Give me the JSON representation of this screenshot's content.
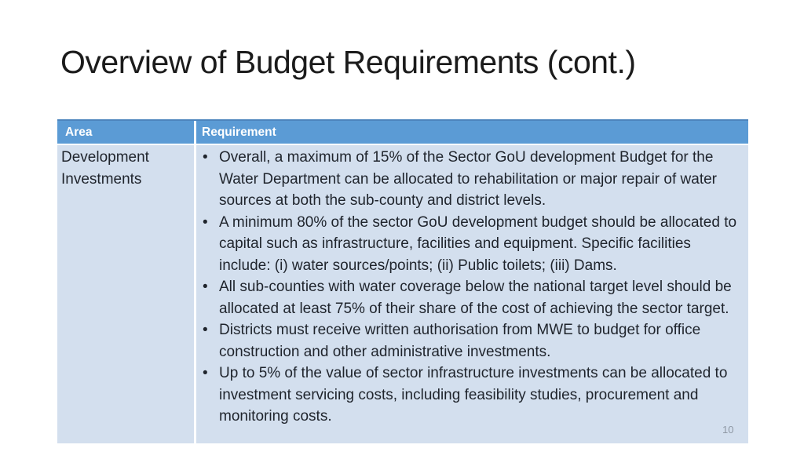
{
  "slide": {
    "title": "Overview of Budget Requirements (cont.)",
    "page_number": "10"
  },
  "table": {
    "bullet_char": "•",
    "headers": [
      "Area",
      "Requirement"
    ],
    "rows": [
      {
        "area": "Development Investments",
        "requirements": [
          "Overall, a maximum of 15% of the Sector GoU development Budget for the Water Department can be allocated to rehabilitation or major repair of water sources at both the sub-county and district levels.",
          "A minimum 80% of the sector GoU development budget should be allocated to capital such as infrastructure, facilities and equipment. Specific facilities include: (i) water sources/points; (ii) Public toilets; (iii) Dams.",
          "All sub-counties with water coverage below the national target level should be allocated at least 75% of their share of the cost of achieving the sector target.",
          "Districts must receive written authorisation from MWE to budget for office construction and other administrative investments.",
          "Up to 5% of the value of sector infrastructure investments can be allocated to investment servicing costs, including feasibility studies, procurement and monitoring costs."
        ]
      }
    ]
  },
  "colors": {
    "header_bg": "#5b9bd5",
    "header_top_border": "#4c84bd",
    "body_bg": "#d3dfee",
    "header_text": "#ffffff",
    "body_text": "#1f242c",
    "page_number_text": "#8e98a4",
    "slide_bg": "#ffffff"
  }
}
